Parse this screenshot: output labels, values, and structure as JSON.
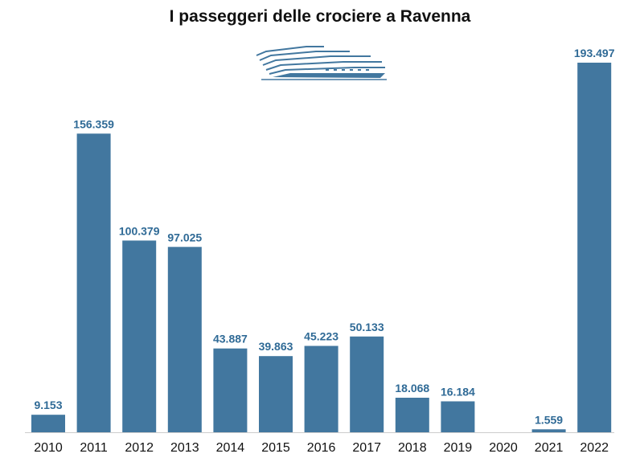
{
  "chart_data": {
    "type": "bar",
    "title": "I passeggeri delle crociere a Ravenna",
    "categories": [
      "2010",
      "2011",
      "2012",
      "2013",
      "2014",
      "2015",
      "2016",
      "2017",
      "2018",
      "2019",
      "2020",
      "2021",
      "2022"
    ],
    "values": [
      9153,
      156359,
      100379,
      97025,
      43887,
      39863,
      45223,
      50133,
      18068,
      16184,
      0,
      1559,
      193497
    ],
    "value_labels": [
      "9.153",
      "156.359",
      "100.379",
      "97.025",
      "43.887",
      "39.863",
      "45.223",
      "50.133",
      "18.068",
      "16.184",
      "",
      "1.559",
      "193.497"
    ],
    "xlabel": "",
    "ylabel": "",
    "ylim": [
      0,
      193497
    ],
    "grid": false,
    "bar_color": "#42779f",
    "label_color": "#2f6a96",
    "icon": "cruise-ship-icon"
  }
}
